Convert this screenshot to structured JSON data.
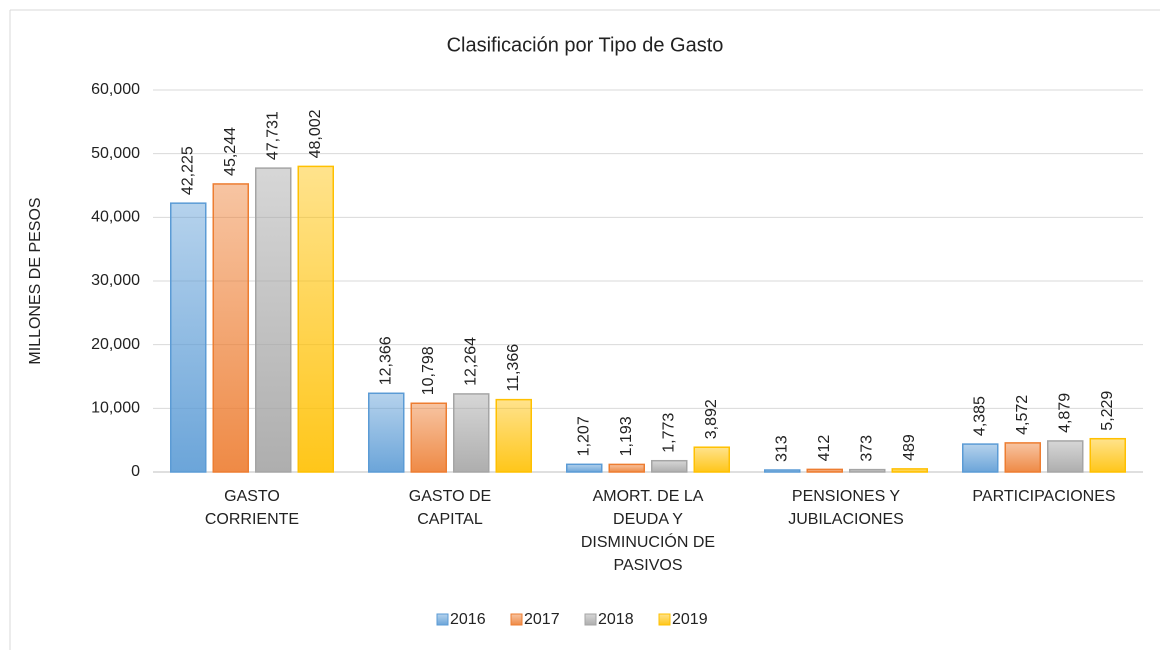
{
  "chart_data": {
    "type": "bar",
    "title": "Clasificación por Tipo de Gasto",
    "y_label": "MILLONES DE PESOS",
    "categories": [
      [
        "GASTO",
        "CORRIENTE"
      ],
      [
        "GASTO DE",
        "CAPITAL"
      ],
      [
        "AMORT. DE LA",
        "DEUDA Y",
        "DISMINUCIÓN DE",
        "PASIVOS"
      ],
      [
        "PENSIONES Y",
        "JUBILACIONES"
      ],
      [
        "PARTICIPACIONES"
      ]
    ],
    "series": [
      {
        "name": "2016",
        "color": "#5b9bd5",
        "values": [
          42225,
          12366,
          1207,
          313,
          4385
        ],
        "value_labels": [
          "42,225",
          "12,366",
          "1,207",
          "313",
          "4,385"
        ]
      },
      {
        "name": "2017",
        "color": "#ed7d31",
        "values": [
          45244,
          10798,
          1193,
          412,
          4572
        ],
        "value_labels": [
          "45,244",
          "10,798",
          "1,193",
          "412",
          "4,572"
        ]
      },
      {
        "name": "2018",
        "color": "#a5a5a5",
        "values": [
          47731,
          12264,
          1773,
          373,
          4879
        ],
        "value_labels": [
          "47,731",
          "12,264",
          "1,773",
          "373",
          "4,879"
        ]
      },
      {
        "name": "2019",
        "color": "#ffc000",
        "values": [
          48002,
          11366,
          3892,
          489,
          5229
        ],
        "value_labels": [
          "48,002",
          "11,366",
          "3,892",
          "489",
          "5,229"
        ]
      }
    ],
    "ylim": [
      0,
      60000
    ],
    "yticks": [
      0,
      {
        "value": 10000,
        "label": "10,000"
      },
      {
        "value": 20000,
        "label": "20,000"
      },
      {
        "value": 30000,
        "label": "30,000"
      },
      {
        "value": 40000,
        "label": "40,000"
      },
      {
        "value": 50000,
        "label": "50,000"
      },
      {
        "value": 60000,
        "label": "60,000"
      }
    ],
    "grid": true,
    "legend": "bottom"
  }
}
